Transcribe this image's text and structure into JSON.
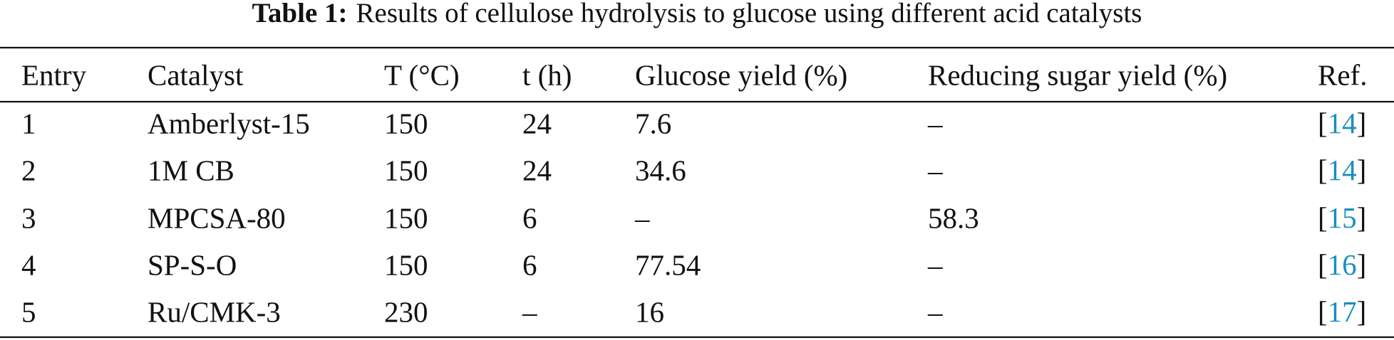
{
  "title": {
    "label": "Table 1:",
    "text": "Results of cellulose hydrolysis to glucose using different acid catalysts"
  },
  "table": {
    "header": [
      "Entry",
      "Catalyst",
      "T (°C)",
      "t (h)",
      "Glucose yield (%)",
      "Reducing sugar yield (%)",
      "Ref."
    ],
    "rows": [
      [
        "1",
        "Amberlyst-15",
        "150",
        "24",
        "7.6",
        "–",
        [
          "[",
          "14",
          "]"
        ]
      ],
      [
        "2",
        "1M CB",
        "150",
        "24",
        "34.6",
        "–",
        [
          "[",
          "14",
          "]"
        ]
      ],
      [
        "3",
        "MPCSA-80",
        "150",
        "6",
        "–",
        "58.3",
        [
          "[",
          "15",
          "]"
        ]
      ],
      [
        "4",
        "SP-S-O",
        "150",
        "6",
        "77.54",
        "–",
        [
          "[",
          "16",
          "]"
        ]
      ],
      [
        "5",
        "Ru/CMK-3",
        "230",
        "–",
        "16",
        "–",
        [
          "[",
          "17",
          "]"
        ]
      ]
    ]
  }
}
